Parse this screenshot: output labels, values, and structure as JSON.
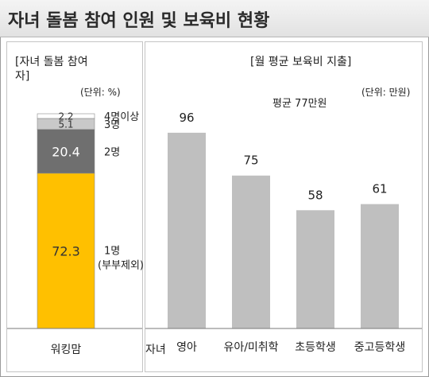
{
  "header": {
    "title": "자녀 돌봄 참여 인원 및 보육비 현황"
  },
  "colors": {
    "yellow": "#ffc000",
    "dark_gray": "#6f6f6f",
    "light_gray": "#c9c9c9",
    "white_seg": "#ffffff",
    "bar_gray": "#bfbfbf"
  },
  "chart_data": [
    {
      "type": "bar",
      "stacked": true,
      "title": "[자녀 돌봄 참여 자]",
      "unit_label": "(단위: %)",
      "categories": [
        "워킹맘"
      ],
      "series": [
        {
          "name": "1명 (부부제외)",
          "values": [
            72.3
          ]
        },
        {
          "name": "2명",
          "values": [
            20.4
          ]
        },
        {
          "name": "3명",
          "values": [
            5.1
          ]
        },
        {
          "name": "4명이상",
          "values": [
            2.2
          ]
        }
      ],
      "ylim": [
        0,
        100
      ],
      "grid": false
    },
    {
      "type": "bar",
      "title": "[월 평균 보육비 지출]",
      "unit_label": "(단위: 만원)",
      "annotation": "평균 77만원",
      "x_axis_prefix": "자녀",
      "categories": [
        "영아",
        "유아/미취학",
        "초등학생",
        "중고등학생"
      ],
      "values": [
        96,
        75,
        58,
        61
      ],
      "ylim": [
        0,
        110
      ],
      "grid": false
    }
  ]
}
